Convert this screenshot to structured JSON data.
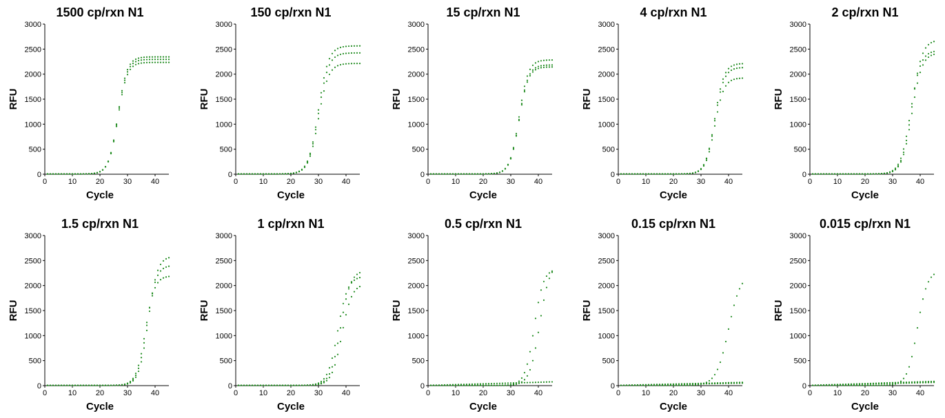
{
  "colors": {
    "points": "#1e8a1e",
    "axis": "#000000"
  },
  "chart_data": [
    {
      "type": "scatter",
      "title": "1500 cp/rxn N1",
      "xlabel": "Cycle",
      "ylabel": "RFU",
      "xlim": [
        0,
        45
      ],
      "ylim": [
        0,
        3000
      ],
      "xticks": [
        0,
        10,
        20,
        30,
        40
      ],
      "yticks": [
        0,
        500,
        1000,
        1500,
        2000,
        2500,
        3000
      ],
      "series": [
        {
          "max": 2340,
          "ct": 26.5,
          "k": 0.6
        },
        {
          "max": 2290,
          "ct": 26.5,
          "k": 0.6
        },
        {
          "max": 2230,
          "ct": 26.5,
          "k": 0.6
        }
      ]
    },
    {
      "type": "scatter",
      "title": "150 cp/rxn N1",
      "xlabel": "Cycle",
      "ylabel": "RFU",
      "xlim": [
        0,
        45
      ],
      "ylim": [
        0,
        3000
      ],
      "xticks": [
        0,
        10,
        20,
        30,
        40
      ],
      "yticks": [
        0,
        500,
        1000,
        1500,
        2000,
        2500,
        3000
      ],
      "series": [
        {
          "max": 2560,
          "ct": 30,
          "k": 0.55
        },
        {
          "max": 2420,
          "ct": 30,
          "k": 0.55
        },
        {
          "max": 2210,
          "ct": 30,
          "k": 0.55
        }
      ]
    },
    {
      "type": "scatter",
      "title": "15 cp/rxn N1",
      "xlabel": "Cycle",
      "ylabel": "RFU",
      "xlim": [
        0,
        45
      ],
      "ylim": [
        0,
        3000
      ],
      "xticks": [
        0,
        10,
        20,
        30,
        40
      ],
      "yticks": [
        0,
        500,
        1000,
        1500,
        2000,
        2500,
        3000
      ],
      "series": [
        {
          "max": 2280,
          "ct": 33,
          "k": 0.6
        },
        {
          "max": 2180,
          "ct": 33,
          "k": 0.6
        },
        {
          "max": 2140,
          "ct": 33,
          "k": 0.6
        }
      ]
    },
    {
      "type": "scatter",
      "title": "4 cp/rxn N1",
      "xlabel": "Cycle",
      "ylabel": "RFU",
      "xlim": [
        0,
        45
      ],
      "ylim": [
        0,
        3000
      ],
      "xticks": [
        0,
        10,
        20,
        30,
        40
      ],
      "yticks": [
        0,
        500,
        1000,
        1500,
        2000,
        2500,
        3000
      ],
      "series": [
        {
          "max": 2210,
          "ct": 35,
          "k": 0.6
        },
        {
          "max": 2130,
          "ct": 35,
          "k": 0.6
        },
        {
          "max": 1920,
          "ct": 35,
          "k": 0.6
        }
      ]
    },
    {
      "type": "scatter",
      "title": "2 cp/rxn N1",
      "xlabel": "Cycle",
      "ylabel": "RFU",
      "xlim": [
        0,
        45
      ],
      "ylim": [
        0,
        3000
      ],
      "xticks": [
        0,
        10,
        20,
        30,
        40
      ],
      "yticks": [
        0,
        500,
        1000,
        1500,
        2000,
        2500,
        3000
      ],
      "series": [
        {
          "max": 2680,
          "ct": 37,
          "k": 0.55
        },
        {
          "max": 2470,
          "ct": 36.5,
          "k": 0.55
        },
        {
          "max": 2420,
          "ct": 37,
          "k": 0.55
        }
      ]
    },
    {
      "type": "scatter",
      "title": "1.5 cp/rxn N1",
      "xlabel": "Cycle",
      "ylabel": "RFU",
      "xlim": [
        0,
        45
      ],
      "ylim": [
        0,
        3000
      ],
      "xticks": [
        0,
        10,
        20,
        30,
        40
      ],
      "yticks": [
        0,
        500,
        1000,
        1500,
        2000,
        2500,
        3000
      ],
      "series": [
        {
          "max": 2580,
          "ct": 37.5,
          "k": 0.6
        },
        {
          "max": 2400,
          "ct": 37,
          "k": 0.6
        },
        {
          "max": 2190,
          "ct": 36.5,
          "k": 0.6
        }
      ]
    },
    {
      "type": "scatter",
      "title": "1 cp/rxn N1",
      "xlabel": "Cycle",
      "ylabel": "RFU",
      "xlim": [
        0,
        45
      ],
      "ylim": [
        0,
        3000
      ],
      "xticks": [
        0,
        10,
        20,
        30,
        40
      ],
      "yticks": [
        0,
        500,
        1000,
        1500,
        2000,
        2500,
        3000
      ],
      "series": [
        {
          "max": 2300,
          "ct": 38,
          "k": 0.55
        },
        {
          "max": 2180,
          "ct": 37,
          "k": 0.55
        },
        {
          "max": 2030,
          "ct": 38.5,
          "k": 0.55
        }
      ]
    },
    {
      "type": "scatter",
      "title": "0.5 cp/rxn N1",
      "xlabel": "Cycle",
      "ylabel": "RFU",
      "xlim": [
        0,
        45
      ],
      "ylim": [
        0,
        3000
      ],
      "xticks": [
        0,
        10,
        20,
        30,
        40
      ],
      "yticks": [
        0,
        500,
        1000,
        1500,
        2000,
        2500,
        3000
      ],
      "series": [
        {
          "max": 2330,
          "ct": 38.5,
          "k": 0.6
        },
        {
          "max": 2450,
          "ct": 40.5,
          "k": 0.55
        },
        {
          "flat": 70
        }
      ]
    },
    {
      "type": "scatter",
      "title": "0.15 cp/rxn N1",
      "xlabel": "Cycle",
      "ylabel": "RFU",
      "xlim": [
        0,
        45
      ],
      "ylim": [
        0,
        3000
      ],
      "xticks": [
        0,
        10,
        20,
        30,
        40
      ],
      "yticks": [
        0,
        500,
        1000,
        1500,
        2000,
        2500,
        3000
      ],
      "series": [
        {
          "max": 2250,
          "ct": 40,
          "k": 0.45
        },
        {
          "flat": 60
        },
        {
          "flat": 45
        }
      ]
    },
    {
      "type": "scatter",
      "title": "0.015 cp/rxn N1",
      "xlabel": "Cycle",
      "ylabel": "RFU",
      "xlim": [
        0,
        45
      ],
      "ylim": [
        0,
        3000
      ],
      "xticks": [
        0,
        10,
        20,
        30,
        40
      ],
      "yticks": [
        0,
        500,
        1000,
        1500,
        2000,
        2500,
        3000
      ],
      "series": [
        {
          "max": 2300,
          "ct": 39,
          "k": 0.55
        },
        {
          "flat": 80
        },
        {
          "flat": 60
        }
      ]
    }
  ]
}
